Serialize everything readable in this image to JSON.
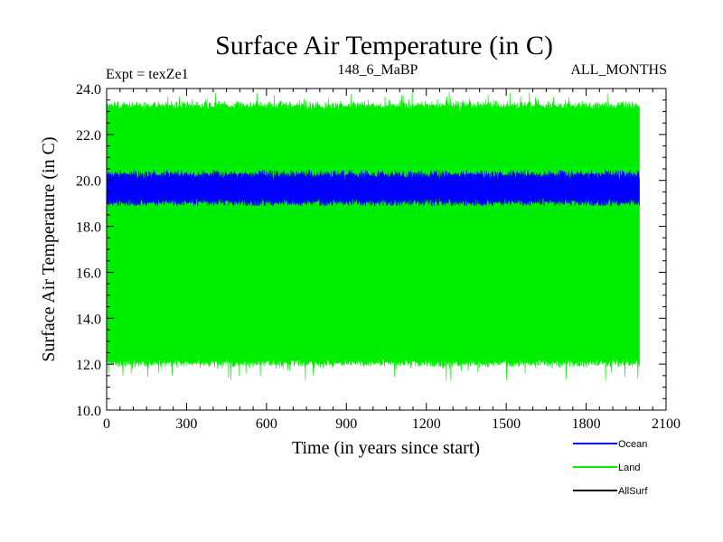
{
  "chart_data": {
    "type": "line",
    "title": "Surface Air Temperature (in C)",
    "subtitle_left": "Expt = texZe1",
    "subtitle_center": "148_6_MaBP",
    "subtitle_right": "ALL_MONTHS",
    "xlabel": "Time (in years since start)",
    "ylabel": "Surface Air Temperature (in C)",
    "xlim": [
      0,
      2100
    ],
    "ylim": [
      10,
      24
    ],
    "x_ticks": [
      0,
      300,
      600,
      900,
      1200,
      1500,
      1800,
      2100
    ],
    "x_tick_labels": [
      "0",
      "300",
      "600",
      "900",
      "1200",
      "1500",
      "1800",
      "2100"
    ],
    "y_ticks": [
      10,
      12,
      14,
      16,
      18,
      20,
      22,
      24
    ],
    "y_tick_labels": [
      "10.0",
      "12.0",
      "14.0",
      "16.0",
      "18.0",
      "20.0",
      "22.0",
      "24.0"
    ],
    "legend_position": "bottom-right",
    "series": [
      {
        "name": "Land",
        "color": "#00ee00",
        "x_range": [
          0,
          2000
        ],
        "center": 17.7,
        "band_min": 11.3,
        "band_max": 23.9,
        "typical_low": 12.1,
        "typical_high": 23.2
      },
      {
        "name": "Ocean",
        "color": "#0000ff",
        "x_range": [
          0,
          2000
        ],
        "center": 19.65,
        "band_min": 18.9,
        "band_max": 20.45,
        "typical_low": 19.1,
        "typical_high": 20.2
      },
      {
        "name": "AllSurf",
        "color": "#000000",
        "x_range": [
          0,
          2000
        ],
        "center": null
      }
    ],
    "legend": [
      {
        "name": "Ocean",
        "color": "#0000ff"
      },
      {
        "name": "Land",
        "color": "#00ee00"
      },
      {
        "name": "AllSurf",
        "color": "#000000"
      }
    ]
  }
}
